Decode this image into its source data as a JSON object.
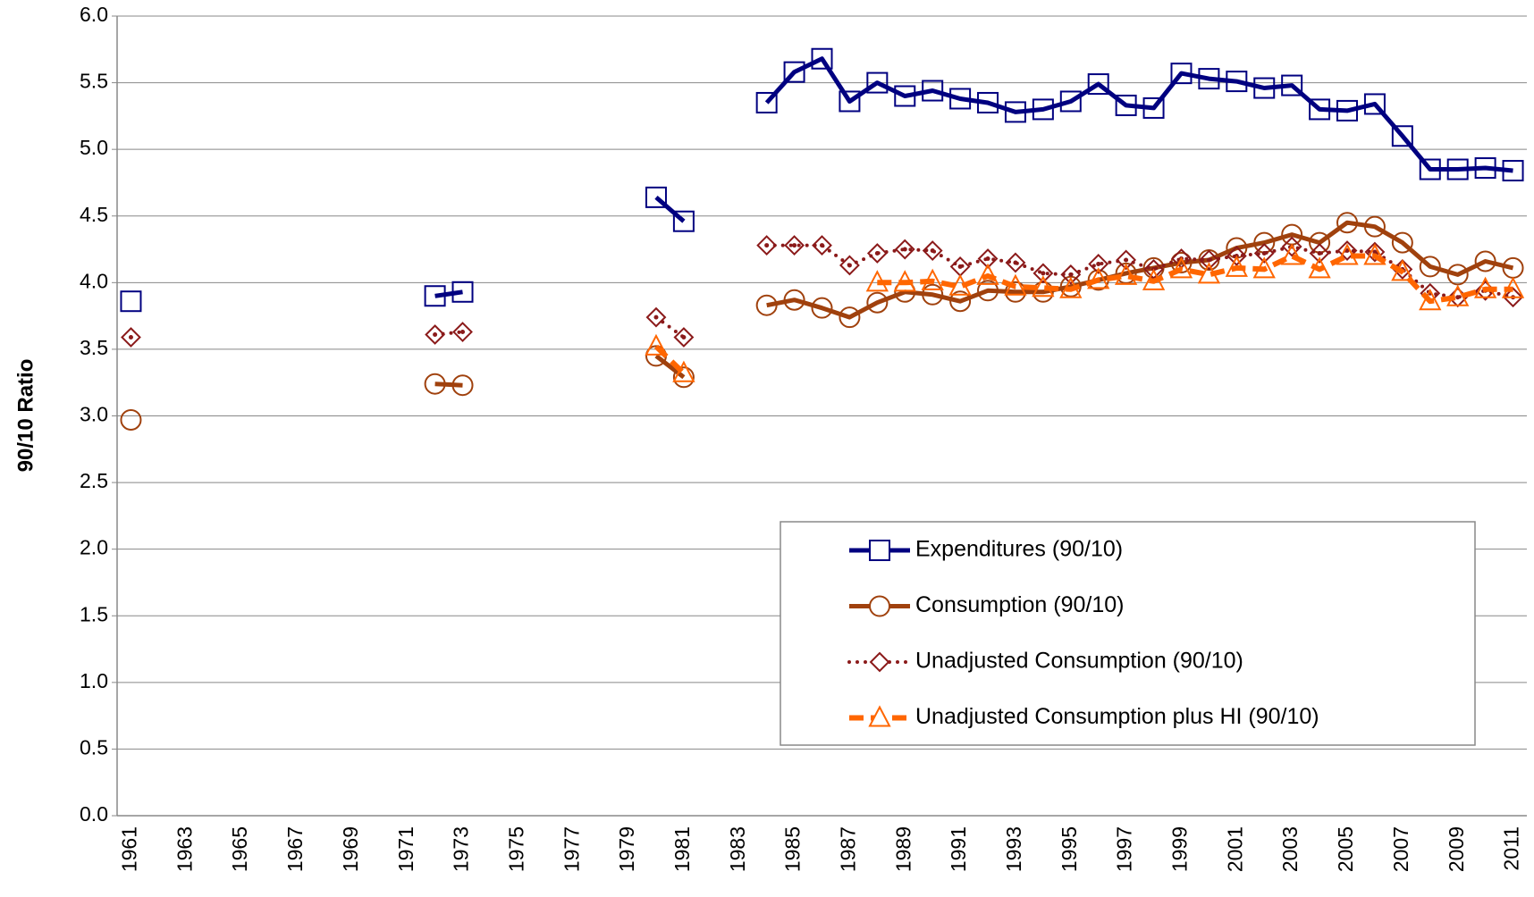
{
  "chart_data": {
    "type": "line",
    "y_label": "90/10 Ratio",
    "categories": [
      "1961",
      null,
      "1963",
      null,
      "1965",
      null,
      "1967",
      null,
      "1969",
      null,
      "1971",
      null,
      "1973",
      null,
      "1975",
      null,
      "1977",
      null,
      "1979",
      null,
      "1981",
      null,
      "1983",
      null,
      "1985",
      null,
      "1987",
      null,
      "1989",
      null,
      "1991",
      null,
      "1993",
      null,
      "1995",
      null,
      "1997",
      null,
      "1999",
      null,
      "2001",
      null,
      "2003",
      null,
      "2005",
      null,
      "2007",
      null,
      "2009",
      null,
      "2011"
    ],
    "series": [
      {
        "name": "Expenditures (90/10)",
        "color": "#000080",
        "marker": "square",
        "line": "solid",
        "values": [
          3.86,
          null,
          null,
          null,
          null,
          null,
          null,
          null,
          null,
          null,
          null,
          3.9,
          3.93,
          null,
          null,
          null,
          null,
          null,
          null,
          4.64,
          4.46,
          null,
          null,
          5.35,
          5.58,
          5.68,
          5.36,
          5.5,
          5.4,
          5.44,
          5.38,
          5.35,
          5.28,
          5.3,
          5.36,
          5.49,
          5.33,
          5.31,
          5.57,
          5.53,
          5.51,
          5.46,
          5.48,
          5.3,
          5.29,
          5.34,
          5.1,
          4.85,
          4.85,
          4.86,
          4.84
        ]
      },
      {
        "name": "Consumption (90/10)",
        "color": "#A0410D",
        "marker": "circle",
        "line": "solid",
        "values": [
          2.97,
          null,
          null,
          null,
          null,
          null,
          null,
          null,
          null,
          null,
          null,
          3.24,
          3.23,
          null,
          null,
          null,
          null,
          null,
          null,
          3.45,
          3.29,
          null,
          null,
          3.83,
          3.87,
          3.81,
          3.74,
          3.85,
          3.93,
          3.91,
          3.86,
          3.94,
          3.93,
          3.93,
          3.97,
          4.02,
          4.07,
          4.11,
          4.15,
          4.17,
          4.26,
          4.3,
          4.36,
          4.3,
          4.45,
          4.42,
          4.3,
          4.12,
          4.06,
          4.16,
          4.11
        ]
      },
      {
        "name": "Unadjusted Consumption (90/10)",
        "color": "#8B1A1A",
        "marker": "diamond",
        "line": "dotted",
        "values": [
          3.59,
          null,
          null,
          null,
          null,
          null,
          null,
          null,
          null,
          null,
          null,
          3.61,
          3.63,
          null,
          null,
          null,
          null,
          null,
          null,
          3.74,
          3.59,
          null,
          null,
          4.28,
          4.28,
          4.28,
          4.13,
          4.22,
          4.25,
          4.24,
          4.12,
          4.18,
          4.15,
          4.07,
          4.06,
          4.14,
          4.17,
          4.1,
          4.18,
          4.17,
          4.2,
          4.22,
          4.27,
          4.22,
          4.24,
          4.23,
          4.1,
          3.92,
          3.89,
          3.94,
          3.89
        ]
      },
      {
        "name": "Unadjusted Consumption plus HI (90/10)",
        "color": "#FF6600",
        "marker": "triangle",
        "line": "dashed",
        "values": [
          null,
          null,
          null,
          null,
          null,
          null,
          null,
          null,
          null,
          null,
          null,
          null,
          null,
          null,
          null,
          null,
          null,
          null,
          null,
          3.52,
          3.32,
          null,
          null,
          null,
          null,
          null,
          null,
          4.0,
          4.0,
          4.01,
          3.97,
          4.05,
          3.97,
          3.96,
          3.95,
          4.02,
          4.05,
          4.01,
          4.1,
          4.06,
          4.11,
          4.1,
          4.2,
          4.1,
          4.2,
          4.2,
          4.08,
          3.86,
          3.89,
          3.95,
          3.95
        ]
      }
    ],
    "ylim": [
      0,
      6
    ],
    "yticks": [
      {
        "value": 0,
        "label": "0.0"
      },
      0.5,
      {
        "value": 1,
        "label": "1.0"
      },
      1.5,
      {
        "value": 2,
        "label": "2.0"
      },
      2.5,
      {
        "value": 3,
        "label": "3.0"
      },
      3.5,
      {
        "value": 4,
        "label": "4.0"
      },
      4.5,
      {
        "value": 5,
        "label": "5.0"
      },
      5.5,
      {
        "value": 6,
        "label": "6.0"
      }
    ],
    "grid": true
  }
}
